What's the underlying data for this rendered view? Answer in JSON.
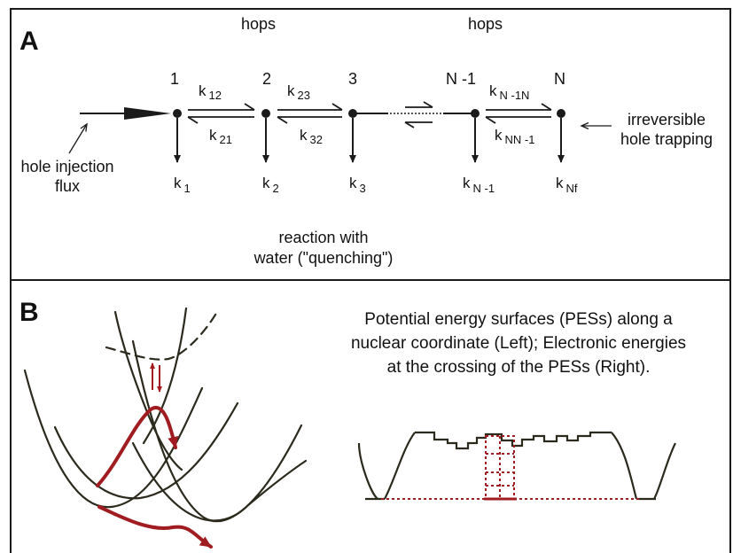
{
  "panel_a": {
    "letter": "A",
    "hops_left": "hops",
    "hops_right": "hops",
    "sites": [
      {
        "label": "1",
        "decay_base": "k",
        "decay_sub": "1"
      },
      {
        "label": "2",
        "decay_base": "k",
        "decay_sub": "2"
      },
      {
        "label": "3",
        "decay_base": "k",
        "decay_sub": "3"
      },
      {
        "label": "N -1",
        "decay_base": "k",
        "decay_sub": "N -1"
      },
      {
        "label": "N",
        "decay_base": "k",
        "decay_sub": "Nf"
      }
    ],
    "rates": [
      {
        "forward_base": "k",
        "forward_sub": "12",
        "backward_base": "k",
        "backward_sub": "21"
      },
      {
        "forward_base": "k",
        "forward_sub": "23",
        "backward_base": "k",
        "backward_sub": "32"
      },
      {
        "forward_base": "k",
        "forward_sub": "N -1N",
        "backward_base": "k",
        "backward_sub": "NN -1"
      }
    ],
    "injection_label": [
      "hole injection",
      "flux"
    ],
    "trapping_label": [
      "irreversible",
      "hole trapping"
    ],
    "reaction_label": [
      "reaction with",
      "water (\"quenching\")"
    ]
  },
  "panel_b": {
    "letter": "B",
    "caption": [
      "Potential energy surfaces (PESs) along a",
      "nuclear coordinate (Left); Electronic energies",
      "at the crossing of the PESs (Right)."
    ]
  },
  "colors": {
    "ink": "#1a1a1a",
    "curve": "#2b2a1c",
    "accent": "#a01c20"
  }
}
